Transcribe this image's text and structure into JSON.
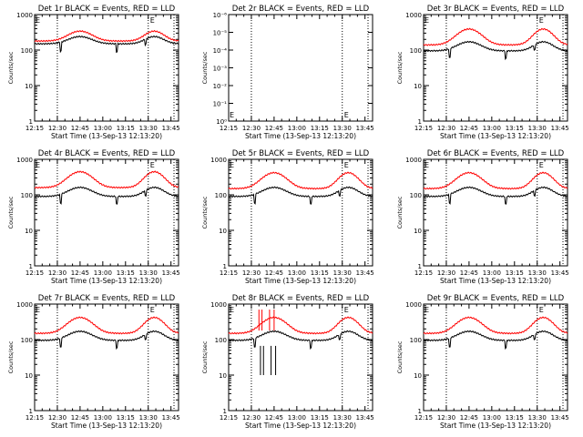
{
  "chart_data": {
    "common": {
      "type": "line",
      "x_tick_labels": [
        "12:15",
        "12:30",
        "12:45",
        "13:00",
        "13:15",
        "13:30",
        "13:45"
      ],
      "y_scale": "log",
      "y_range_default": [
        1,
        1000
      ],
      "y_tick_labels_default": [
        "1",
        "10",
        "100",
        "1000"
      ],
      "y_tick_labels_det2": [
        "10⁰",
        "10⁻¹",
        "10⁻²",
        "10⁻³",
        "10⁻⁴",
        "10⁻⁵",
        "10⁻⁶"
      ],
      "ylabel": "Counts/sec",
      "xlabel": "Start Time (13-Sep-13 12:13:20)",
      "dotted_vlines_at": [
        "12:30",
        "13:30",
        "13:47"
      ],
      "marker_labels": [
        "E",
        "E"
      ],
      "series": [
        {
          "name": "Events",
          "color": "#000000"
        },
        {
          "name": "LLD",
          "color": "#ff0000"
        }
      ]
    },
    "panels": [
      {
        "title": "Det 1r BLACK = Events, RED = LLD",
        "events_base": 150,
        "lld_base": 180,
        "events_amp": 1.6,
        "lld_amp": 1.9,
        "spikes": false,
        "empty": false
      },
      {
        "title": "Det 2r BLACK = Events, RED = LLD",
        "events_base": null,
        "lld_base": null,
        "events_amp": 0,
        "lld_amp": 0,
        "spikes": false,
        "empty": true
      },
      {
        "title": "Det 3r BLACK = Events, RED = LLD",
        "events_base": 95,
        "lld_base": 140,
        "events_amp": 1.8,
        "lld_amp": 2.8,
        "spikes": false,
        "empty": false
      },
      {
        "title": "Det 4r BLACK = Events, RED = LLD",
        "events_base": 90,
        "lld_base": 160,
        "events_amp": 1.8,
        "lld_amp": 2.8,
        "spikes": false,
        "empty": false
      },
      {
        "title": "Det 5r BLACK = Events, RED = LLD",
        "events_base": 90,
        "lld_base": 150,
        "events_amp": 1.8,
        "lld_amp": 2.8,
        "spikes": false,
        "empty": false
      },
      {
        "title": "Det 6r BLACK = Events, RED = LLD",
        "events_base": 90,
        "lld_base": 150,
        "events_amp": 1.8,
        "lld_amp": 2.8,
        "spikes": false,
        "empty": false
      },
      {
        "title": "Det 7r BLACK = Events, RED = LLD",
        "events_base": 95,
        "lld_base": 150,
        "events_amp": 1.8,
        "lld_amp": 2.8,
        "spikes": false,
        "empty": false
      },
      {
        "title": "Det 8r BLACK = Events, RED = LLD",
        "events_base": 95,
        "lld_base": 150,
        "events_amp": 1.8,
        "lld_amp": 2.8,
        "spikes": true,
        "empty": false
      },
      {
        "title": "Det 9r BLACK = Events, RED = LLD",
        "events_base": 95,
        "lld_base": 150,
        "events_amp": 1.8,
        "lld_amp": 2.8,
        "spikes": false,
        "empty": false
      }
    ]
  }
}
